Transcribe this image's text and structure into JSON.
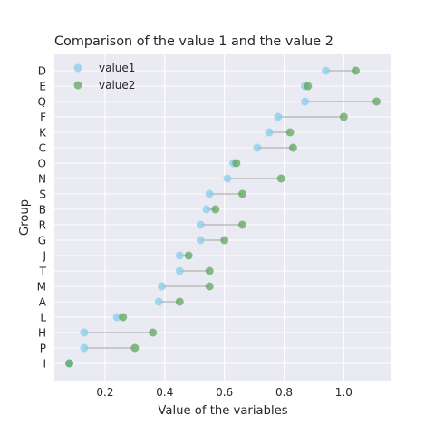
{
  "chart_data": {
    "type": "dumbbell",
    "title": "Comparison of the value 1 and the value 2",
    "xlabel": "Value of the variables",
    "ylabel": "Group",
    "xlim": [
      0.03,
      1.16
    ],
    "xticks": [
      0.2,
      0.4,
      0.6,
      0.8,
      1.0
    ],
    "xtick_labels": [
      "0.2",
      "0.4",
      "0.6",
      "0.8",
      "1.0"
    ],
    "grid": true,
    "legend_position": "top-left",
    "categories": [
      "D",
      "E",
      "Q",
      "F",
      "K",
      "C",
      "O",
      "N",
      "S",
      "B",
      "R",
      "G",
      "J",
      "T",
      "M",
      "A",
      "L",
      "H",
      "P",
      "I"
    ],
    "series": [
      {
        "name": "value1",
        "color": "#87ceeb",
        "values": [
          0.94,
          0.87,
          0.87,
          0.78,
          0.75,
          0.71,
          0.63,
          0.61,
          0.55,
          0.54,
          0.52,
          0.52,
          0.45,
          0.45,
          0.39,
          0.38,
          0.24,
          0.13,
          0.13,
          0.08
        ]
      },
      {
        "name": "value2",
        "color": "#5fa65f",
        "values": [
          1.04,
          0.88,
          1.11,
          1.0,
          0.82,
          0.83,
          0.64,
          0.79,
          0.66,
          0.57,
          0.66,
          0.6,
          0.48,
          0.55,
          0.55,
          0.45,
          0.26,
          0.36,
          0.3,
          0.08
        ]
      }
    ],
    "connector_color": "#bdbdbd",
    "background_color": "#eaeaf2"
  }
}
